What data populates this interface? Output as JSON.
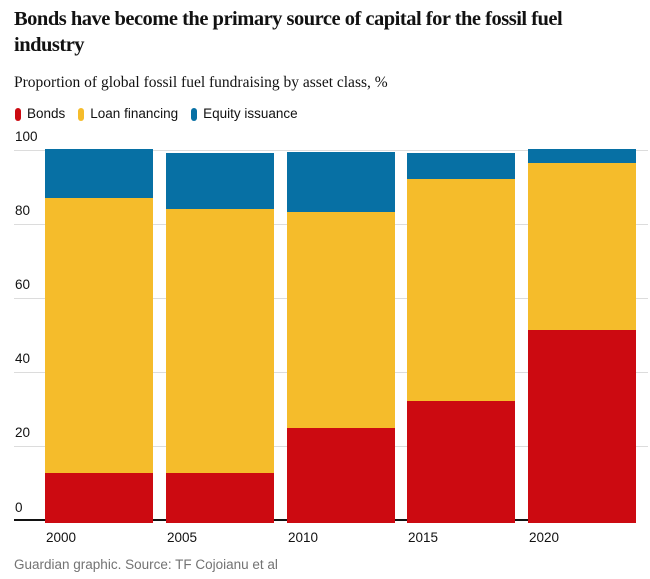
{
  "header": {
    "title": "Bonds have become the primary source of capital for the fossil fuel industry",
    "subtitle": "Proportion of global fossil fuel fundraising by asset class, %"
  },
  "footer": {
    "source": "Guardian graphic. Source: TF Cojoianu et al"
  },
  "colors": {
    "bonds": "#cc0a11",
    "loan_financing": "#f5bc2b",
    "equity_issuance": "#0770a4",
    "gridline": "#dcdcdc",
    "axis": "#121212",
    "text": "#121212",
    "muted_text": "#737373"
  },
  "chart_data": {
    "type": "bar",
    "stacked": true,
    "title": "Bonds have become the primary source of capital for the fossil fuel industry",
    "subtitle": "Proportion of global fossil fuel fundraising by asset class, %",
    "xlabel": "",
    "ylabel": "%",
    "ylim": [
      0,
      100
    ],
    "yticks": [
      0,
      20,
      40,
      60,
      80,
      100
    ],
    "grid": true,
    "legend_position": "top",
    "categories": [
      "2000",
      "2005",
      "2010",
      "2015",
      "2020"
    ],
    "series": [
      {
        "name": "Bonds",
        "color": "#cc0a11",
        "values": [
          13.5,
          13.5,
          25.3,
          32.7,
          51.5
        ]
      },
      {
        "name": "Loan financing",
        "color": "#f5bc2b",
        "values": [
          73.5,
          70.5,
          57.7,
          59.3,
          44.7
        ]
      },
      {
        "name": "Equity issuance",
        "color": "#0770a4",
        "values": [
          13.0,
          15.0,
          16.0,
          7.0,
          3.8
        ]
      }
    ]
  }
}
